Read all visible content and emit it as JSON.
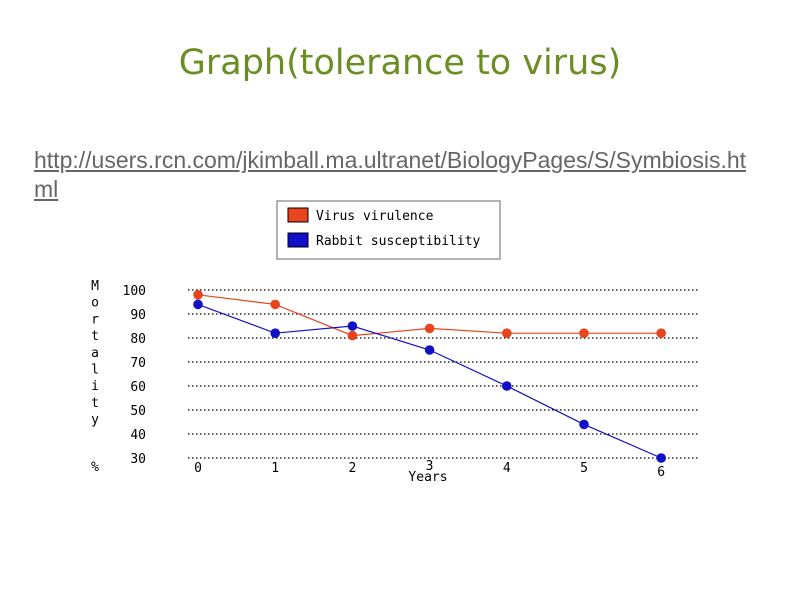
{
  "slide": {
    "title": "Graph(tolerance to virus)",
    "link": "http://users.rcn.com/jkimball.ma.ultranet/BiologyPages/S/Symbiosis.html"
  },
  "chart_data": {
    "type": "line",
    "title": "",
    "xlabel": "Years",
    "ylabel": "Mortality %",
    "ylabel_chars": [
      "M",
      "o",
      "r",
      "t",
      "a",
      "l",
      "i",
      "t",
      "y",
      "%"
    ],
    "x": [
      0,
      1,
      2,
      3,
      4,
      5,
      6
    ],
    "xticks": [
      "0",
      "1",
      "2",
      "3",
      "4",
      "5",
      "6"
    ],
    "yticks": [
      "100",
      "90",
      "80",
      "70",
      "60",
      "50",
      "40",
      "30"
    ],
    "ylim": [
      30,
      100
    ],
    "grid": true,
    "legend_position": "top",
    "series": [
      {
        "name": "Virus virulence",
        "color": "#e8451e",
        "values": [
          98,
          94,
          81,
          84,
          82,
          82,
          82
        ]
      },
      {
        "name": "Rabbit susceptibility",
        "color": "#1010c8",
        "values": [
          94,
          82,
          85,
          75,
          60,
          44,
          30
        ]
      }
    ]
  }
}
